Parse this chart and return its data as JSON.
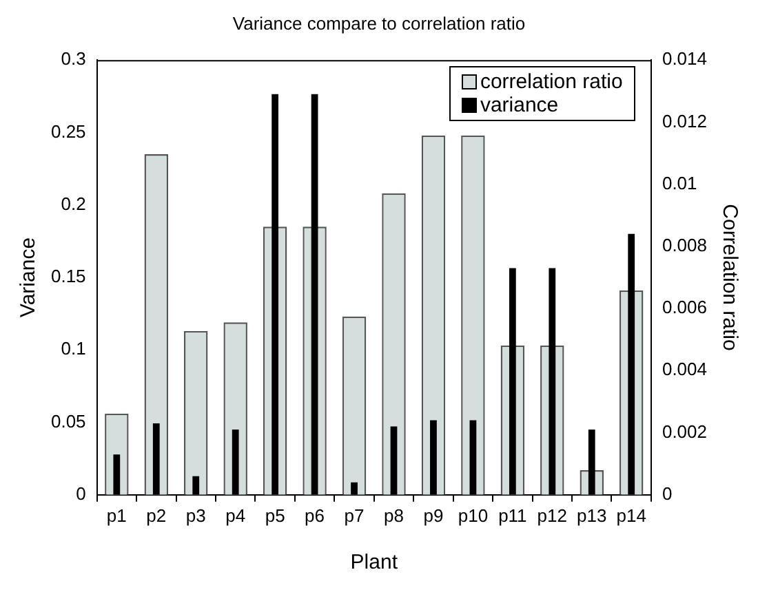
{
  "chart_data": {
    "type": "bar",
    "title": "Variance compare to correlation ratio",
    "xlabel": "Plant",
    "ylabel": "Variance",
    "y2label": "Correlation ratio",
    "categories": [
      "p1",
      "p2",
      "p3",
      "p4",
      "p5",
      "p6",
      "p7",
      "p8",
      "p9",
      "p10",
      "p11",
      "p12",
      "p13",
      "p14"
    ],
    "series": [
      {
        "name": "correlation ratio",
        "color": "#d3dedd",
        "values": [
          0.056,
          0.235,
          0.113,
          0.119,
          0.185,
          0.185,
          0.123,
          0.208,
          0.248,
          0.248,
          0.103,
          0.103,
          0.017,
          0.141
        ]
      },
      {
        "name": "variance",
        "color": "#000000",
        "axis": "y2",
        "values": [
          0.0013,
          0.0023,
          0.0006,
          0.0021,
          0.0129,
          0.0129,
          0.0004,
          0.0022,
          0.0024,
          0.0024,
          0.0073,
          0.0073,
          0.0021,
          0.0084
        ]
      }
    ],
    "ylim": [
      0,
      0.3
    ],
    "yticks": [
      0,
      0.05,
      0.1,
      0.15,
      0.2,
      0.25,
      0.3
    ],
    "y2lim": [
      0,
      0.014
    ],
    "y2ticks": [
      0,
      0.002,
      0.004,
      0.006,
      0.008,
      0.01,
      0.012,
      0.014
    ],
    "grid": false,
    "legend": "top right"
  }
}
